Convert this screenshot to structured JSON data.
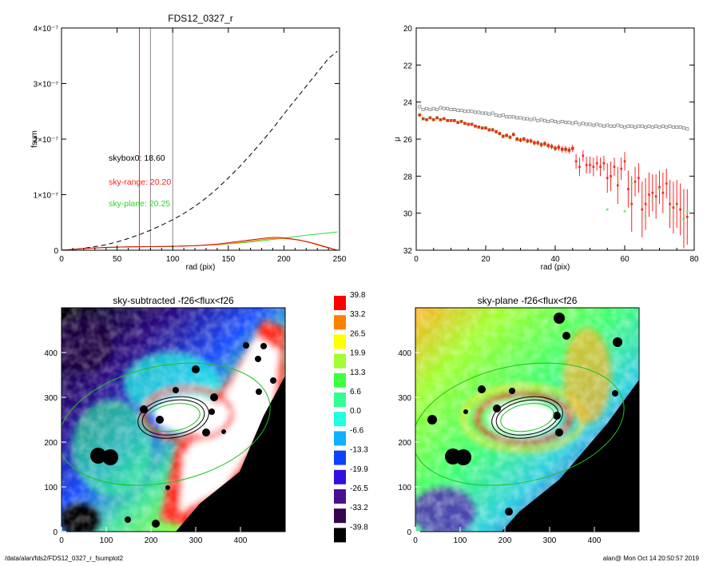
{
  "colors": {
    "red": "#ff2020",
    "orange": "#ff8000",
    "green": "#30dd30",
    "gray": "#888888",
    "white_marker": "#ffffff"
  },
  "footer": {
    "left": "/data/alan/fds2/FDS12_0327_r_fsumplot2",
    "right": "alan@  Mon Oct 14 20:50:57 2019"
  },
  "chart_data": [
    {
      "type": "line",
      "title": "FDS12_0327_r",
      "xlabel": "rad (pix)",
      "ylabel": "fsum",
      "xlim": [
        0,
        250
      ],
      "ylim": [
        0,
        4e-07
      ],
      "x_ticks": [
        "0",
        "50",
        "100",
        "150",
        "200",
        "250"
      ],
      "y_ticks": [
        "0",
        "1×10⁻⁷",
        "2×10⁻⁷",
        "3×10⁻⁷",
        "4×10⁻⁷"
      ],
      "vertical_lines": [
        {
          "x": 70,
          "color": "red"
        },
        {
          "x": 80,
          "color": "gray"
        },
        {
          "x": 100,
          "color": "gray"
        }
      ],
      "annotations": [
        {
          "text": "skybox0: 18.60",
          "color": "black"
        },
        {
          "text": "sky-range: 20.20",
          "color": "red"
        },
        {
          "text": "sky-plane: 20.25",
          "color": "green"
        }
      ],
      "series": [
        {
          "style": "dashed-black",
          "x": [
            0,
            10,
            20,
            30,
            40,
            50,
            60,
            70,
            80,
            90,
            100,
            110,
            120,
            130,
            140,
            150,
            160,
            170,
            180,
            190,
            200,
            210,
            220,
            230,
            240,
            248
          ],
          "y": [
            0,
            1.5e-09,
            3.5e-09,
            6.5e-09,
            1e-08,
            1.5e-08,
            2.1e-08,
            2.8e-08,
            3.6e-08,
            4.5e-08,
            5.5e-08,
            6.6e-08,
            7.9e-08,
            9.4e-08,
            1.11e-07,
            1.3e-07,
            1.5e-07,
            1.72e-07,
            1.95e-07,
            2.19e-07,
            2.45e-07,
            2.7e-07,
            2.95e-07,
            3.2e-07,
            3.45e-07,
            3.58e-07
          ]
        },
        {
          "style": "green",
          "x": [
            0,
            10,
            20,
            40,
            60,
            80,
            100,
            120,
            140,
            160,
            180,
            200,
            220,
            248
          ],
          "y": [
            0,
            1.5e-09,
            3e-09,
            5e-09,
            6e-09,
            6.5e-09,
            7e-09,
            8e-09,
            1e-08,
            1.3e-08,
            1.7e-08,
            2.2e-08,
            2.7e-08,
            3.3e-08
          ]
        },
        {
          "style": "orange",
          "x": [
            0,
            10,
            20,
            40,
            60,
            80,
            100,
            120,
            140,
            160,
            180,
            190,
            200,
            210,
            220,
            230,
            240,
            248
          ],
          "y": [
            0,
            1.5e-09,
            3e-09,
            5e-09,
            6e-09,
            6.5e-09,
            7e-09,
            8e-09,
            1e-08,
            1.4e-08,
            1.9e-08,
            2.1e-08,
            2.1e-08,
            1.9e-08,
            1.6e-08,
            1.1e-08,
            5e-09,
            0
          ]
        },
        {
          "style": "red",
          "x": [
            0,
            10,
            20,
            40,
            60,
            80,
            100,
            120,
            140,
            160,
            180,
            190,
            195,
            205,
            215,
            225,
            235,
            248
          ],
          "y": [
            0,
            1.5e-09,
            3e-09,
            5e-09,
            6e-09,
            6.5e-09,
            7e-09,
            8e-09,
            1.1e-08,
            1.6e-08,
            2.1e-08,
            2.3e-08,
            2.3e-08,
            2.1e-08,
            1.8e-08,
            1.3e-08,
            7e-09,
            0
          ]
        }
      ]
    },
    {
      "type": "scatter",
      "xlabel": "rad (pix)",
      "ylabel": "μ",
      "xlim": [
        0,
        80
      ],
      "ylim": [
        32,
        20
      ],
      "x_ticks": [
        "0",
        "20",
        "40",
        "60",
        "80"
      ],
      "y_ticks": [
        "20",
        "22",
        "24",
        "26",
        "28",
        "30",
        "32"
      ],
      "series": [
        {
          "style": "gray-open-squares",
          "x": [
            1,
            2,
            3,
            4,
            5,
            6,
            7,
            8,
            9,
            10,
            11,
            12,
            13,
            14,
            15,
            16,
            17,
            18,
            19,
            20,
            21,
            22,
            23,
            24,
            25,
            26,
            27,
            28,
            29,
            30,
            31,
            32,
            33,
            34,
            35,
            36,
            37,
            38,
            39,
            40,
            41,
            42,
            43,
            44,
            45,
            46,
            47,
            48,
            49,
            50,
            51,
            52,
            53,
            54,
            55,
            56,
            57,
            58,
            59,
            60,
            61,
            62,
            63,
            64,
            65,
            66,
            67,
            68,
            69,
            70,
            71,
            72,
            73,
            74,
            75,
            76,
            77,
            78
          ],
          "y": [
            24.25,
            24.4,
            24.35,
            24.4,
            24.35,
            24.4,
            24.3,
            24.35,
            24.35,
            24.4,
            24.4,
            24.45,
            24.45,
            24.5,
            24.5,
            24.5,
            24.55,
            24.55,
            24.6,
            24.6,
            24.65,
            24.6,
            24.7,
            24.75,
            24.7,
            24.8,
            24.8,
            24.8,
            24.85,
            24.85,
            24.9,
            24.9,
            24.95,
            24.9,
            25.0,
            24.95,
            25.0,
            25.05,
            25.0,
            25.05,
            25.1,
            25.05,
            25.1,
            25.1,
            25.15,
            25.1,
            25.2,
            25.15,
            25.2,
            25.2,
            25.25,
            25.2,
            25.25,
            25.3,
            25.25,
            25.3,
            25.3,
            25.25,
            25.3,
            25.35,
            25.3,
            25.3,
            25.35,
            25.3,
            25.3,
            25.35,
            25.3,
            25.35,
            25.3,
            25.35,
            25.3,
            25.35,
            25.3,
            25.35,
            25.35,
            25.35,
            25.4,
            25.45
          ]
        },
        {
          "style": "red-with-errorbars",
          "x": [
            1,
            2,
            3,
            4,
            5,
            6,
            7,
            8,
            9,
            10,
            11,
            12,
            13,
            14,
            15,
            16,
            17,
            18,
            19,
            20,
            21,
            22,
            23,
            24,
            25,
            26,
            27,
            28,
            29,
            30,
            31,
            32,
            33,
            34,
            35,
            36,
            37,
            38,
            39,
            40,
            41,
            42,
            43,
            44,
            45,
            46,
            47,
            48,
            49,
            50,
            51,
            52,
            53,
            54,
            55,
            56,
            57,
            58,
            59,
            60,
            61,
            62,
            63,
            64,
            65,
            66,
            67,
            68,
            69,
            70,
            71,
            72,
            73,
            74,
            75,
            76,
            77,
            78
          ],
          "y": [
            24.7,
            24.9,
            24.95,
            24.85,
            24.95,
            24.85,
            24.95,
            24.9,
            25.0,
            25.0,
            25.0,
            25.1,
            25.05,
            25.15,
            25.2,
            25.2,
            25.3,
            25.35,
            25.4,
            25.4,
            25.5,
            25.5,
            25.6,
            25.7,
            25.85,
            25.8,
            25.9,
            25.75,
            26.0,
            26.05,
            26.0,
            26.1,
            26.1,
            26.2,
            26.2,
            26.3,
            26.25,
            26.35,
            26.4,
            26.5,
            26.45,
            26.55,
            26.55,
            26.6,
            26.5,
            27.2,
            27.5,
            26.9,
            27.4,
            27.4,
            27.5,
            27.3,
            27.5,
            27.3,
            28.1,
            28.0,
            27.5,
            28.5,
            27.6,
            27.2,
            28.7,
            29.5,
            28.3,
            28.1,
            29.8,
            29.5,
            29.0,
            28.9,
            29.1,
            28.6,
            28.9,
            28.4,
            29.5,
            29.7,
            29.5,
            29.8,
            30.3,
            30.2
          ],
          "err": [
            0.05,
            0.05,
            0.05,
            0.05,
            0.05,
            0.05,
            0.05,
            0.05,
            0.05,
            0.05,
            0.06,
            0.06,
            0.06,
            0.06,
            0.07,
            0.07,
            0.07,
            0.08,
            0.08,
            0.08,
            0.09,
            0.09,
            0.1,
            0.1,
            0.1,
            0.1,
            0.11,
            0.11,
            0.12,
            0.12,
            0.12,
            0.13,
            0.13,
            0.14,
            0.14,
            0.15,
            0.15,
            0.15,
            0.16,
            0.16,
            0.17,
            0.18,
            0.18,
            0.19,
            0.2,
            0.4,
            0.5,
            0.3,
            0.45,
            0.45,
            0.5,
            0.4,
            0.5,
            0.4,
            0.8,
            0.8,
            0.5,
            1.0,
            0.6,
            0.5,
            1.0,
            1.5,
            0.8,
            0.8,
            1.5,
            1.4,
            1.2,
            1.0,
            1.2,
            0.9,
            1.1,
            0.8,
            1.3,
            1.4,
            1.3,
            1.4,
            1.6,
            1.5
          ]
        },
        {
          "style": "green-dots",
          "x": [
            55,
            60,
            62,
            66,
            68,
            70,
            73,
            75,
            77,
            78
          ],
          "y": [
            29.8,
            29.9,
            28.4,
            30.2,
            29.3,
            28.7,
            29.9,
            29.6,
            30.3,
            29.9
          ]
        }
      ]
    },
    {
      "type": "heatmap",
      "title": "sky-subtracted -f26<flux<f26",
      "xlim": [
        0,
        500
      ],
      "ylim": [
        0,
        500
      ],
      "x_ticks": [
        "0",
        "100",
        "200",
        "300",
        "400"
      ],
      "y_ticks": [
        "0",
        "100",
        "200",
        "300",
        "400"
      ],
      "ellipses": [
        {
          "cx": 250,
          "cy": 255,
          "rx": 70,
          "ry": 38,
          "angle": 10,
          "color": "black"
        },
        {
          "cx": 250,
          "cy": 255,
          "rx": 80,
          "ry": 45,
          "angle": 10,
          "color": "black"
        },
        {
          "cx": 250,
          "cy": 255,
          "rx": 60,
          "ry": 30,
          "angle": 10,
          "color": "green"
        },
        {
          "cx": 230,
          "cy": 240,
          "rx": 240,
          "ry": 130,
          "angle": 12,
          "color": "green"
        }
      ]
    },
    {
      "type": "heatmap",
      "title": "sky-plane -f26<flux<f26",
      "xlim": [
        0,
        500
      ],
      "ylim": [
        0,
        500
      ],
      "x_ticks": [
        "0",
        "100",
        "200",
        "300",
        "400"
      ],
      "y_ticks": [
        "0",
        "100",
        "200",
        "300",
        "400"
      ],
      "ellipses": [
        {
          "cx": 250,
          "cy": 255,
          "rx": 70,
          "ry": 38,
          "angle": 10,
          "color": "black"
        },
        {
          "cx": 250,
          "cy": 255,
          "rx": 80,
          "ry": 45,
          "angle": 10,
          "color": "black"
        },
        {
          "cx": 250,
          "cy": 255,
          "rx": 60,
          "ry": 30,
          "angle": 10,
          "color": "green"
        },
        {
          "cx": 230,
          "cy": 240,
          "rx": 240,
          "ry": 130,
          "angle": 12,
          "color": "green"
        }
      ]
    },
    {
      "type": "colorbar",
      "labels": [
        "39.8",
        "33.2",
        "26.5",
        "19.9",
        "13.3",
        "6.6",
        "0.0",
        "-6.6",
        "-13.3",
        "-19.9",
        "-26.5",
        "-33.2",
        "-39.8"
      ],
      "colors": [
        "#ff0000",
        "#ff8000",
        "#ffff00",
        "#a0ff30",
        "#40ff40",
        "#30ff90",
        "#20ffe0",
        "#10b0ff",
        "#1040ff",
        "#3010e0",
        "#4a1090",
        "#350550",
        "#000000"
      ]
    }
  ]
}
